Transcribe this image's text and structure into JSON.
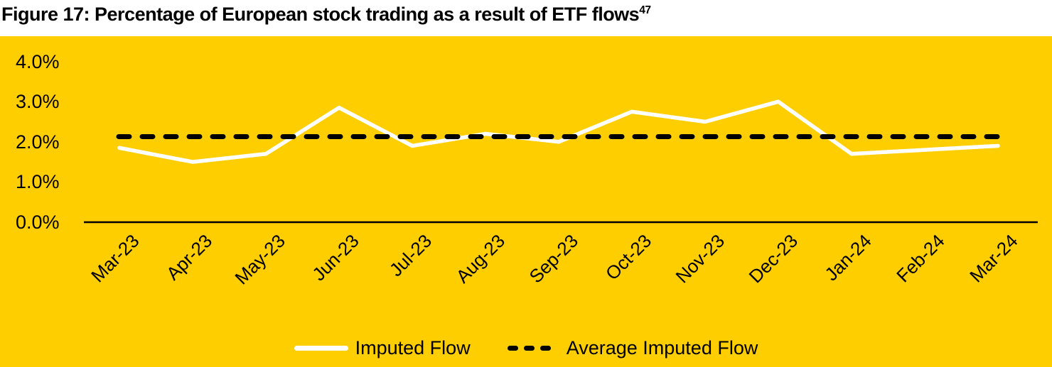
{
  "title": {
    "text": "Figure 17: Percentage of European stock trading as a result of ETF flows",
    "footnote_ref": "47"
  },
  "colors": {
    "page_background": "#FFFFFF",
    "panel_background": "#FFCE00",
    "imputed_flow_line": "#FFFFFF",
    "average_line": "#000000",
    "axis_line": "#000000",
    "text": "#000000"
  },
  "chart_data": {
    "type": "line",
    "title": "Figure 17: Percentage of European stock trading as a result of ETF flows",
    "x": [
      "Mar-23",
      "Apr-23",
      "May-23",
      "Jun-23",
      "Jul-23",
      "Aug-23",
      "Sep-23",
      "Oct-23",
      "Nov-23",
      "Dec-23",
      "Jan-24",
      "Feb-24",
      "Mar-24"
    ],
    "series": [
      {
        "name": "Imputed Flow",
        "style": "solid",
        "color": "#FFFFFF",
        "values": [
          1.85,
          1.5,
          1.7,
          2.85,
          1.9,
          2.2,
          2.0,
          2.75,
          2.5,
          3.0,
          1.7,
          1.8,
          1.9
        ]
      },
      {
        "name": "Average Imputed Flow",
        "style": "dashed",
        "color": "#000000",
        "value": 2.13
      }
    ],
    "xlabel": "",
    "ylabel": "",
    "ylim": [
      0,
      4
    ],
    "yticks": [
      {
        "value": 0,
        "label": "0.0%"
      },
      {
        "value": 1,
        "label": "1.0%"
      },
      {
        "value": 2,
        "label": "2.0%"
      },
      {
        "value": 3,
        "label": "3.0%"
      },
      {
        "value": 4,
        "label": "4.0%"
      }
    ],
    "grid": false,
    "legend_position": "bottom-center"
  },
  "legend": {
    "items": [
      {
        "label": "Imputed Flow",
        "swatch": "solid-white-line"
      },
      {
        "label": "Average Imputed Flow",
        "swatch": "dashed-black-line"
      }
    ]
  }
}
